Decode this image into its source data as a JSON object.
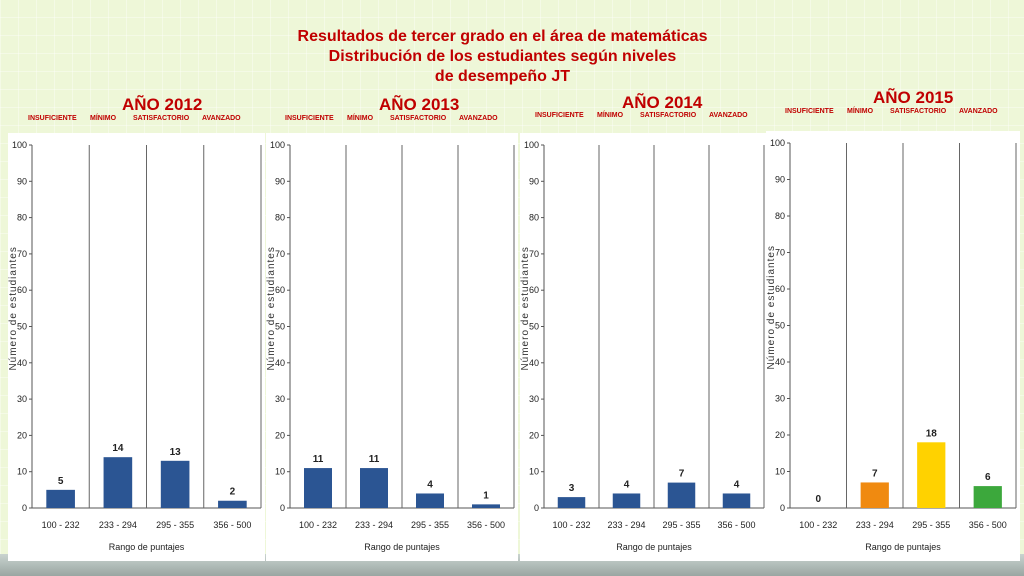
{
  "title_lines": [
    "Resultados de tercer grado en el área de matemáticas",
    "Distribución de los estudiantes según niveles",
    "de desempeño JT"
  ],
  "levels": [
    "INSUFICIENTE",
    "MÍNIMO",
    "SATISFACTORIO",
    "AVANZADO"
  ],
  "chart_data": [
    {
      "type": "bar",
      "title": "AÑO 2012",
      "categories": [
        "100 - 232",
        "233 - 294",
        "295 - 355",
        "356 - 500"
      ],
      "values": [
        5,
        14,
        13,
        2
      ],
      "colors": [
        "#2b5593",
        "#2b5593",
        "#2b5593",
        "#2b5593"
      ],
      "xlabel": "Rango de puntajes",
      "ylabel": "Número de estudiantes",
      "ylim": [
        0,
        100
      ],
      "yticks": [
        0,
        10,
        20,
        30,
        40,
        50,
        60,
        70,
        80,
        90,
        100
      ]
    },
    {
      "type": "bar",
      "title": "AÑO 2013",
      "categories": [
        "100 - 232",
        "233 - 294",
        "295 - 355",
        "356 - 500"
      ],
      "values": [
        11,
        11,
        4,
        1
      ],
      "colors": [
        "#2b5593",
        "#2b5593",
        "#2b5593",
        "#2b5593"
      ],
      "xlabel": "Rango de puntajes",
      "ylabel": "Número de estudiantes",
      "ylim": [
        0,
        100
      ],
      "yticks": [
        0,
        10,
        20,
        30,
        40,
        50,
        60,
        70,
        80,
        90,
        100
      ]
    },
    {
      "type": "bar",
      "title": "AÑO 2014",
      "categories": [
        "100 - 232",
        "233 - 294",
        "295 - 355",
        "356 - 500"
      ],
      "values": [
        3,
        4,
        7,
        4
      ],
      "colors": [
        "#2b5593",
        "#2b5593",
        "#2b5593",
        "#2b5593"
      ],
      "xlabel": "Rango de puntajes",
      "ylabel": "Número de estudiantes",
      "ylim": [
        0,
        100
      ],
      "yticks": [
        0,
        10,
        20,
        30,
        40,
        50,
        60,
        70,
        80,
        90,
        100
      ]
    },
    {
      "type": "bar",
      "title": "AÑO 2015",
      "categories": [
        "100 - 232",
        "233 - 294",
        "295 - 355",
        "356 - 500"
      ],
      "values": [
        0,
        7,
        18,
        6
      ],
      "colors": [
        "#d63a2e",
        "#f08a10",
        "#ffd200",
        "#3ca83c"
      ],
      "xlabel": "Rango de puntajes",
      "ylabel": "Número de estudiantes",
      "ylim": [
        0,
        100
      ],
      "yticks": [
        0,
        10,
        20,
        30,
        40,
        50,
        60,
        70,
        80,
        90,
        100
      ]
    }
  ]
}
